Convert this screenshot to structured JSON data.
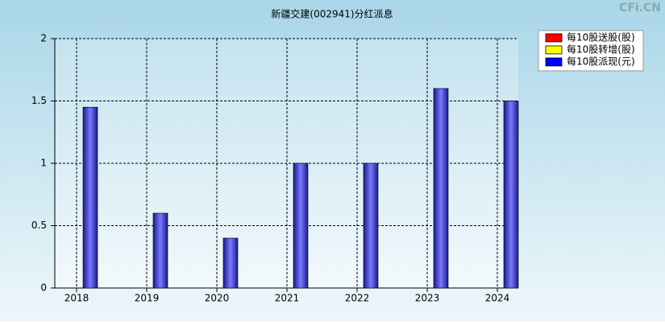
{
  "chart_data": {
    "type": "bar",
    "title": "新疆交建(002941)分红派息",
    "watermark": "CFi.CN",
    "categories": [
      "2018",
      "2019",
      "2020",
      "2021",
      "2022",
      "2023",
      "2024"
    ],
    "series": [
      {
        "name": "每10股送股(股)",
        "color": "#ff0000",
        "values": [
          0,
          0,
          0,
          0,
          0,
          0,
          0
        ]
      },
      {
        "name": "每10股转增(股)",
        "color": "#ffff00",
        "values": [
          0,
          0,
          0,
          0,
          0,
          0,
          0
        ]
      },
      {
        "name": "每10股派现(元)",
        "color": "#0000ff",
        "values": [
          1.45,
          0.6,
          0.4,
          1,
          1,
          1.6,
          1.5
        ]
      }
    ],
    "ylim": [
      0,
      2
    ],
    "yticks": [
      0,
      0.5,
      1,
      1.5,
      2
    ],
    "grid": true,
    "legend": "top-right"
  }
}
